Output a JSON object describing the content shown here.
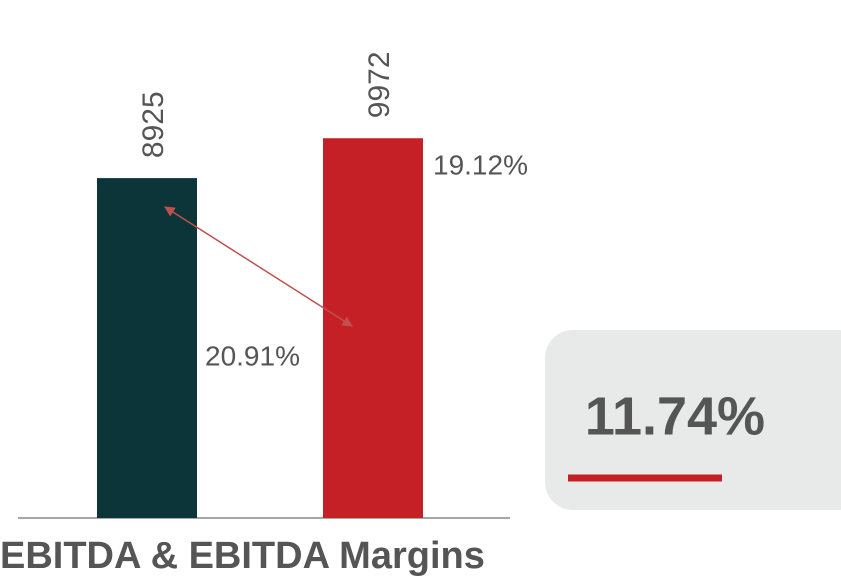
{
  "chart_data": {
    "type": "bar",
    "title": "EBITDA & EBITDA Margins",
    "categories": [
      null,
      null
    ],
    "series": [
      {
        "name": null,
        "colors": [
          "#0b3538",
          "#c52026"
        ],
        "values": [
          8925,
          9972
        ]
      }
    ],
    "margin_labels": [
      "20.91%",
      "19.12%"
    ],
    "growth_label": "11.74%",
    "ylim": [
      0,
      12000
    ]
  }
}
